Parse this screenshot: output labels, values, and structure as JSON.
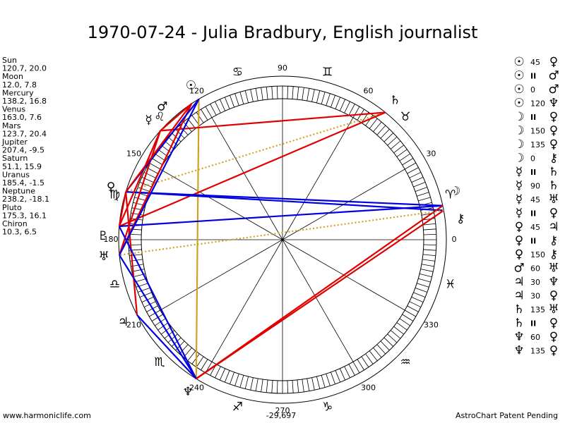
{
  "title": "1970-07-24 - Julia Bradbury, English journalist",
  "planets": [
    {
      "name": "Sun",
      "position": "120.7, 20.0",
      "glyph": "☉"
    },
    {
      "name": "Moon",
      "position": "12.0, 7.8",
      "glyph": "☽"
    },
    {
      "name": "Mercury",
      "position": "138.2, 16.8",
      "glyph": "☿"
    },
    {
      "name": "Venus",
      "position": "163.0, 7.6",
      "glyph": "♀"
    },
    {
      "name": "Mars",
      "position": "123.7, 20.4",
      "glyph": "♂"
    },
    {
      "name": "Jupiter",
      "position": "207.4, -9.5",
      "glyph": "♃"
    },
    {
      "name": "Saturn",
      "position": "51.1, 15.9",
      "glyph": "♄"
    },
    {
      "name": "Uranus",
      "position": "185.4, -1.5",
      "glyph": "♅"
    },
    {
      "name": "Neptune",
      "position": "238.2, -18.1",
      "glyph": "♆"
    },
    {
      "name": "Pluto",
      "position": "175.3, 16.1",
      "glyph": "♇"
    },
    {
      "name": "Chiron",
      "position": "10.3, 6.5",
      "glyph": "⚷"
    }
  ],
  "aspects": [
    [
      "☉",
      "45",
      "♀"
    ],
    [
      "☉",
      "II",
      "♂"
    ],
    [
      "☉",
      "0",
      "♂"
    ],
    [
      "☉",
      "120",
      "♆"
    ],
    [
      "☽",
      "II",
      "♀"
    ],
    [
      "☽",
      "150",
      "♀"
    ],
    [
      "☽",
      "135",
      "♀"
    ],
    [
      "☽",
      "0",
      "⚷"
    ],
    [
      "☿",
      "II",
      "♄"
    ],
    [
      "☿",
      "90",
      "♄"
    ],
    [
      "☿",
      "45",
      "♅"
    ],
    [
      "☿",
      "II",
      "♀"
    ],
    [
      "♀",
      "45",
      "♃"
    ],
    [
      "♀",
      "II",
      "⚷"
    ],
    [
      "♀",
      "150",
      "⚷"
    ],
    [
      "♂",
      "60",
      "♅"
    ],
    [
      "♃",
      "30",
      "♆"
    ],
    [
      "♃",
      "30",
      "♀"
    ],
    [
      "♄",
      "135",
      "♅"
    ],
    [
      "♄",
      "II",
      "♀"
    ],
    [
      "♆",
      "60",
      "♀"
    ],
    [
      "♆",
      "135",
      "♀"
    ]
  ],
  "signs": [
    "♈",
    "♉",
    "♊",
    "♋",
    "♌",
    "♍",
    "♎",
    "♏",
    "♐",
    "♑",
    "♒",
    "♓"
  ],
  "degree_labels": [
    0,
    30,
    60,
    90,
    120,
    150,
    180,
    210,
    240,
    270,
    300,
    330
  ],
  "footer": {
    "left": "www.harmoniclife.com",
    "center": "-29,697",
    "right": "AstroChart Patent Pending"
  }
}
